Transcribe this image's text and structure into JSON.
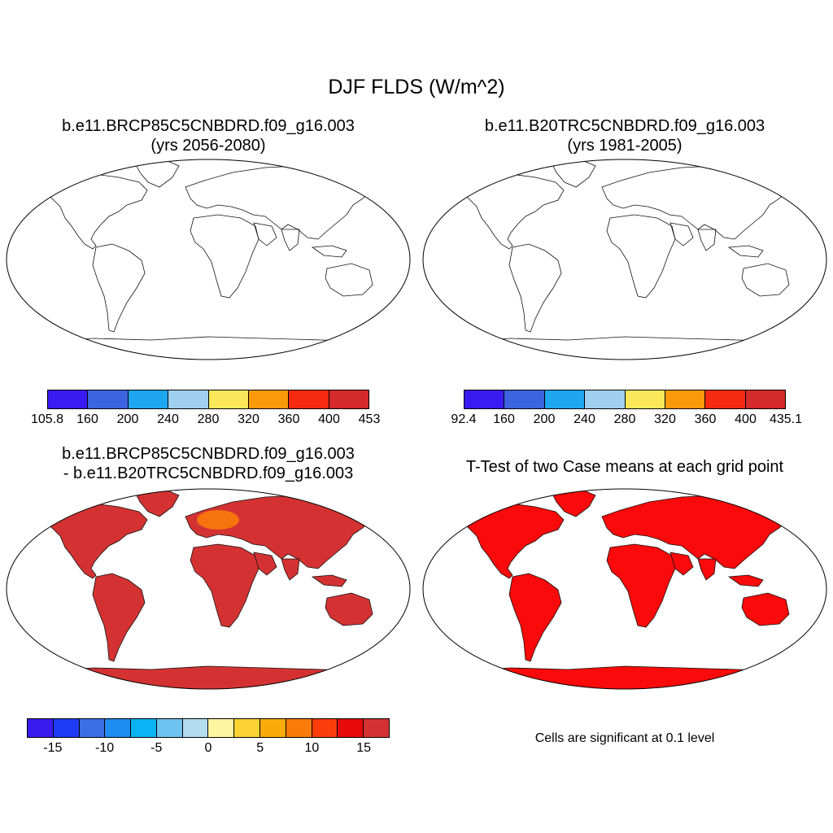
{
  "main_title": "DJF FLDS (W/m^2)",
  "panels": [
    {
      "line1": "b.e11.BRCP85C5CNBDRD.f09_g16.003",
      "line2": "(yrs 2056-2080)"
    },
    {
      "line1": "b.e11.B20TRC5CNBDRD.f09_g16.003",
      "line2": "(yrs 1981-2005)"
    },
    {
      "line1": "b.e11.BRCP85C5CNBDRD.f09_g16.003",
      "line2": "- b.e11.B20TRC5CNBDRD.f09_g16.003"
    },
    {
      "line1": "T-Test of two Case means at each grid point",
      "line2": ""
    }
  ],
  "colorbars": [
    {
      "colors": [
        "#3a1af0",
        "#3c64e0",
        "#1ea6f0",
        "#a0d0f0",
        "#fae85a",
        "#fa9a0a",
        "#f52a10",
        "#d42a2a"
      ],
      "labels": [
        "105.8",
        "160",
        "200",
        "240",
        "280",
        "320",
        "360",
        "400",
        "453"
      ]
    },
    {
      "colors": [
        "#3a1af0",
        "#3c64e0",
        "#1ea6f0",
        "#a0d0f0",
        "#fae85a",
        "#fa9a0a",
        "#f52a10",
        "#d42a2a"
      ],
      "labels": [
        "92.4",
        "160",
        "200",
        "240",
        "280",
        "320",
        "360",
        "400",
        "435.1"
      ]
    },
    {
      "colors": [
        "#3a1af0",
        "#1e3cf5",
        "#3c6ee6",
        "#1e8cf0",
        "#0ab4f5",
        "#6ec3f0",
        "#b4dcf0",
        "#fff5a0",
        "#fad232",
        "#faaa0a",
        "#fa7a0a",
        "#fa3c0a",
        "#e60a0a",
        "#d43232"
      ],
      "labels": [
        "-15",
        "-10",
        "-5",
        "0",
        "5",
        "10",
        "15"
      ]
    }
  ],
  "significance_note": "Cells are significant at 0.1 level",
  "map_colors": {
    "cold": "#3a1af0",
    "cool": "#3c64e0",
    "mid_blue": "#1ea6f0",
    "light_blue": "#a0d0f0",
    "yellow": "#fae85a",
    "orange": "#fa9a0a",
    "red": "#f52a10",
    "dark_red": "#d42a2a",
    "diff_red": "#d43232",
    "diff_orange": "#fa7a0a",
    "ttest_red": "#fa0a0a"
  }
}
